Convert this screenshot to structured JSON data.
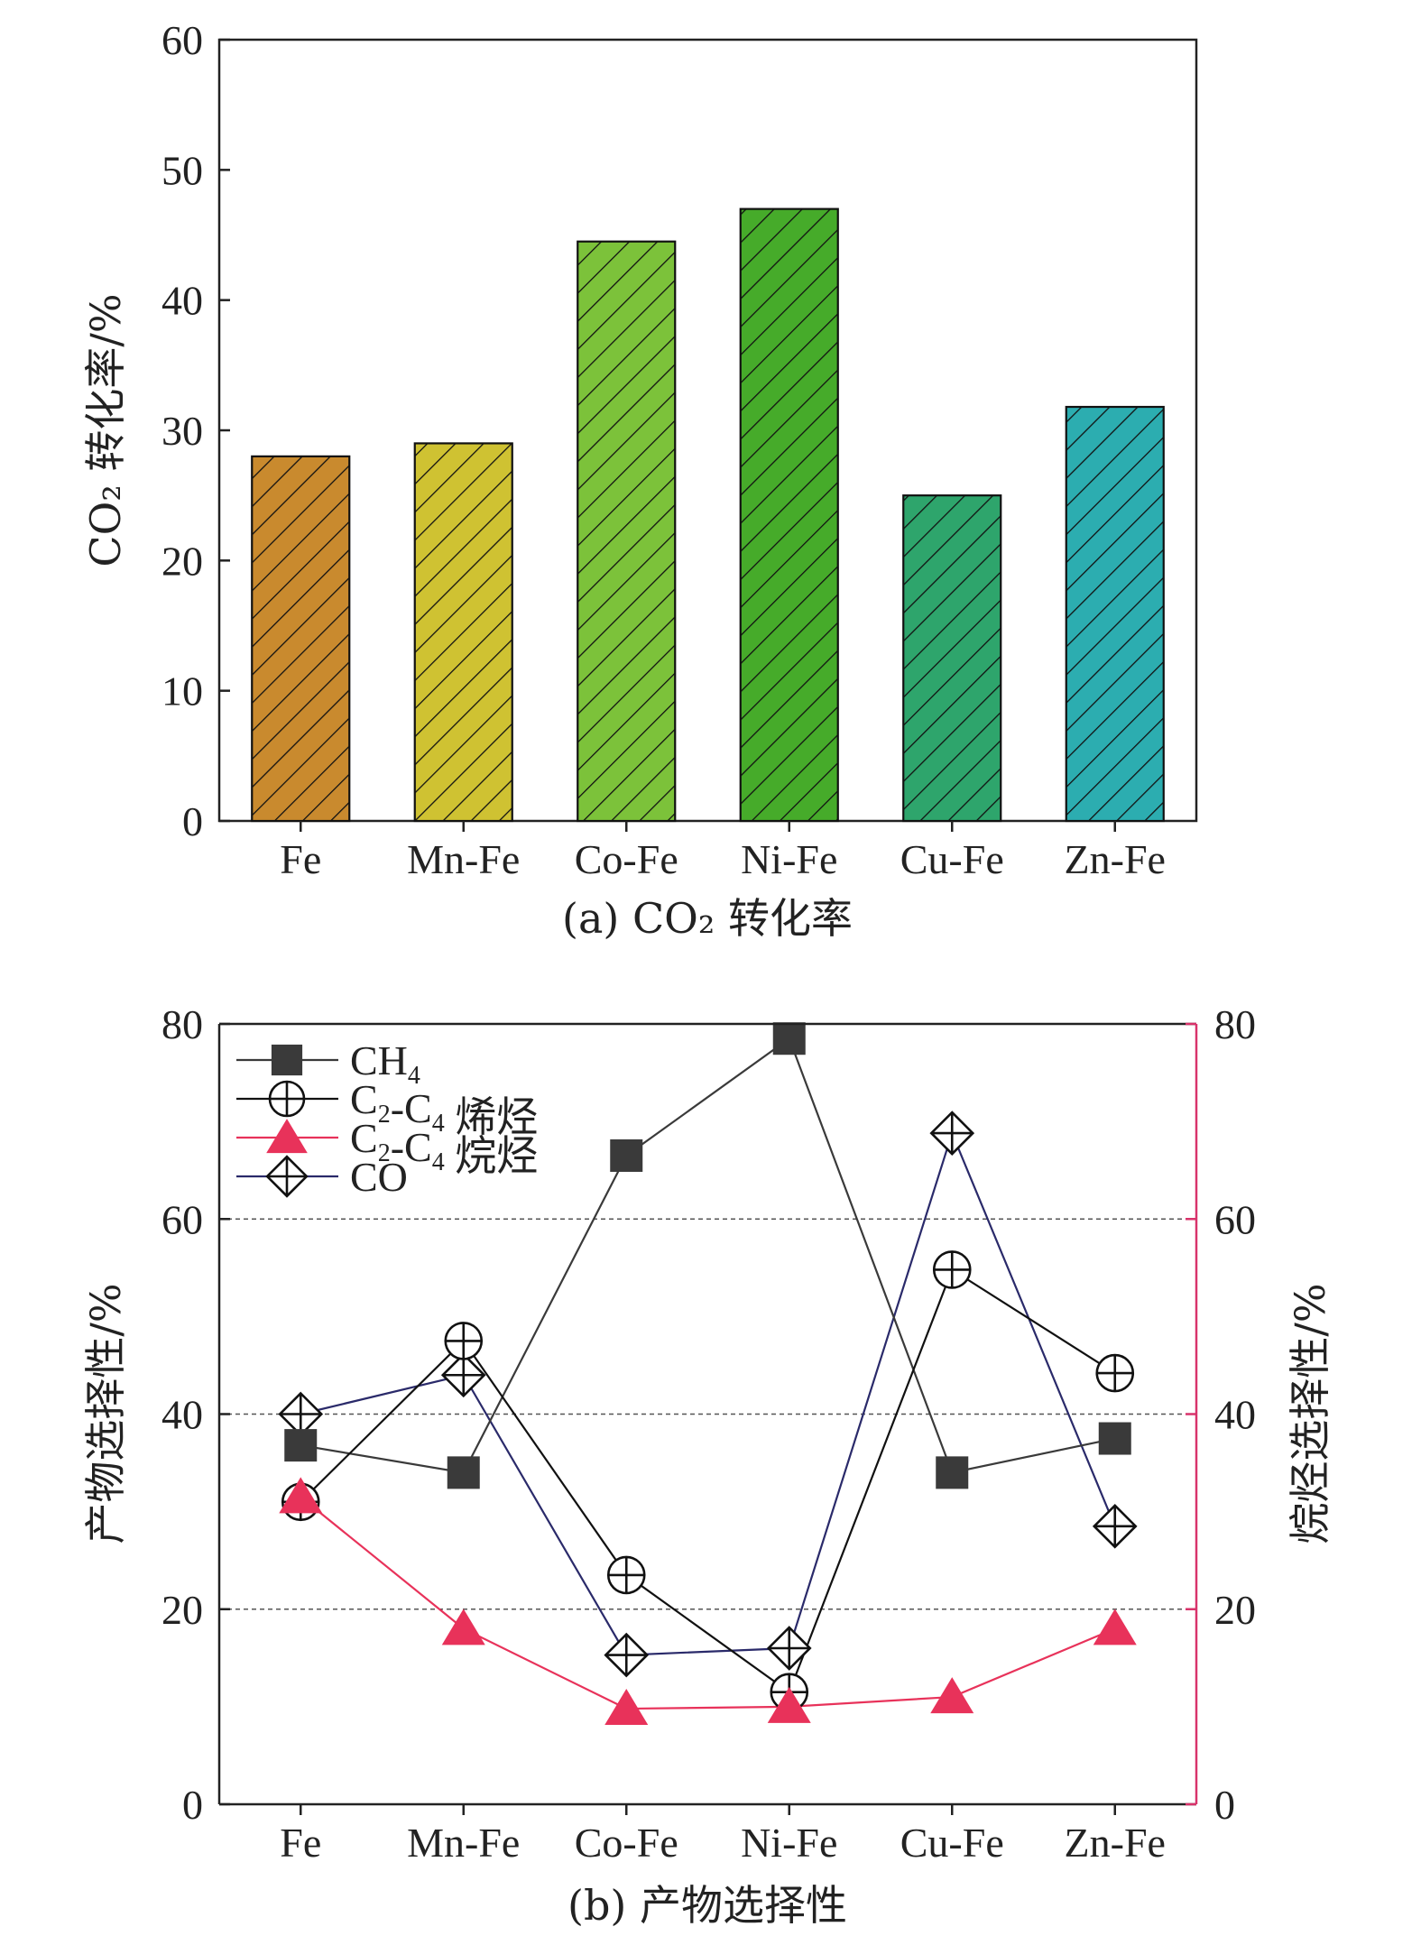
{
  "chart_data": [
    {
      "type": "bar",
      "caption": "(a) CO₂ 转化率",
      "ylabel": "CO₂ 转化率/%",
      "categories": [
        "Fe",
        "Mn-Fe",
        "Co-Fe",
        "Ni-Fe",
        "Cu-Fe",
        "Zn-Fe"
      ],
      "values": [
        28,
        29,
        44.5,
        47,
        25,
        31.8
      ],
      "ylim": [
        0,
        60
      ],
      "yticks": [
        "0",
        "10",
        "20",
        "30",
        "40",
        "50",
        "60"
      ],
      "colors": [
        "#c98a2e",
        "#cfc232",
        "#7cc23a",
        "#46ab2a",
        "#2ea56c",
        "#2cadb0"
      ],
      "hatch": "diagonal",
      "grid": false
    },
    {
      "type": "line",
      "caption": "(b) 产物选择性",
      "ylabel": "产物选择性/%",
      "y2label": "烷烃选择性/%",
      "categories": [
        "Fe",
        "Mn-Fe",
        "Co-Fe",
        "Ni-Fe",
        "Cu-Fe",
        "Zn-Fe"
      ],
      "ylim": [
        0,
        80
      ],
      "y2lim": [
        0,
        80
      ],
      "yticks": [
        "0",
        "20",
        "40",
        "60",
        "80"
      ],
      "y2ticks": [
        "0",
        "20",
        "40",
        "60",
        "80"
      ],
      "grid": "dashed at 20, 40, 60",
      "legend_position": "top-left",
      "series": [
        {
          "name": "CH4",
          "name_parts": [
            "CH",
            "4",
            ""
          ],
          "marker": "square",
          "color": "#3a3a3a",
          "axis": "left",
          "values": [
            36.8,
            34,
            66.5,
            78.5,
            34,
            37.5
          ]
        },
        {
          "name": "C2-C4 烯烃",
          "name_parts": [
            "C",
            "2",
            "-C",
            "4",
            " 烯烃"
          ],
          "marker": "circle-plus",
          "color": "#111111",
          "axis": "left",
          "values": [
            31,
            47.5,
            23.5,
            11.5,
            54.8,
            44.2
          ]
        },
        {
          "name": "C2-C4 烷烃",
          "name_parts": [
            "C",
            "2",
            "-C",
            "4",
            " 烷烃"
          ],
          "marker": "triangle",
          "color": "#e8325a",
          "axis": "right",
          "values": [
            31.5,
            18,
            9.8,
            10,
            11,
            18
          ]
        },
        {
          "name": "CO",
          "name_parts": [
            "CO"
          ],
          "marker": "diamond-plus",
          "color": "#2a2a6a",
          "axis": "left",
          "values": [
            40,
            44,
            15.3,
            16,
            68.8,
            28.5
          ]
        }
      ]
    }
  ],
  "colors": {
    "axis": "#222222",
    "right_axis": "#d8336b",
    "grid": "#555555"
  }
}
